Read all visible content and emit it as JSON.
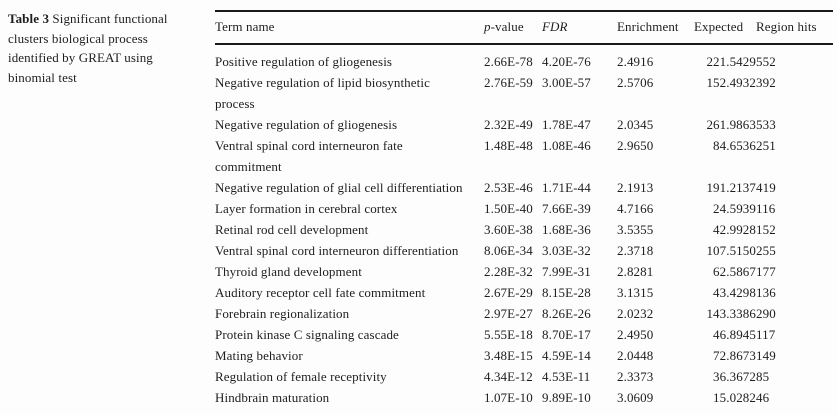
{
  "caption": {
    "label": "Table 3",
    "text": "Significant functional clusters biological process identified by GREAT using binomial test"
  },
  "table": {
    "columns": [
      {
        "key": "term",
        "label": "Term name",
        "italic": false
      },
      {
        "key": "p_value",
        "label": "p-value",
        "italic_prefix": "p",
        "label_rest": "-value"
      },
      {
        "key": "fdr",
        "label": "FDR",
        "italic": true
      },
      {
        "key": "enrichment",
        "label": "Enrichment",
        "italic": false
      },
      {
        "key": "expected",
        "label": "Expected",
        "italic": false
      },
      {
        "key": "region_hits",
        "label": "Region hits",
        "italic": false
      }
    ],
    "rows": [
      {
        "term": "Positive regulation of gliogenesis",
        "p_value": "2.66E-78",
        "fdr": "4.20E-76",
        "enrichment": "2.4916",
        "expected": "221.5429",
        "region_hits": "552"
      },
      {
        "term": "Negative regulation of lipid biosynthetic\nprocess",
        "p_value": "2.76E-59",
        "fdr": "3.00E-57",
        "enrichment": "2.5706",
        "expected": "152.4932",
        "region_hits": "392"
      },
      {
        "term": "Negative regulation of gliogenesis",
        "p_value": "2.32E-49",
        "fdr": "1.78E-47",
        "enrichment": "2.0345",
        "expected": "261.9863",
        "region_hits": "533"
      },
      {
        "term": "Ventral spinal cord interneuron fate\ncommitment",
        "p_value": "1.48E-48",
        "fdr": "1.08E-46",
        "enrichment": "2.9650",
        "expected": "84.6536",
        "region_hits": "251"
      },
      {
        "term": "Negative regulation of glial cell differentiation",
        "p_value": "2.53E-46",
        "fdr": "1.71E-44",
        "enrichment": "2.1913",
        "expected": "191.2137",
        "region_hits": "419"
      },
      {
        "term": "Layer formation in cerebral cortex",
        "p_value": "1.50E-40",
        "fdr": "7.66E-39",
        "enrichment": "4.7166",
        "expected": "24.5939",
        "region_hits": "116"
      },
      {
        "term": "Retinal rod cell development",
        "p_value": "3.60E-38",
        "fdr": "1.68E-36",
        "enrichment": "3.5355",
        "expected": "42.9928",
        "region_hits": "152"
      },
      {
        "term": "Ventral spinal cord interneuron differentiation",
        "p_value": "8.06E-34",
        "fdr": "3.03E-32",
        "enrichment": "2.3718",
        "expected": "107.5150",
        "region_hits": "255"
      },
      {
        "term": "Thyroid gland development",
        "p_value": "2.28E-32",
        "fdr": "7.99E-31",
        "enrichment": "2.8281",
        "expected": "62.5867",
        "region_hits": "177"
      },
      {
        "term": "Auditory receptor cell fate commitment",
        "p_value": "2.67E-29",
        "fdr": "8.15E-28",
        "enrichment": "3.1315",
        "expected": "43.4298",
        "region_hits": "136"
      },
      {
        "term": "Forebrain regionalization",
        "p_value": "2.97E-27",
        "fdr": "8.26E-26",
        "enrichment": "2.0232",
        "expected": "143.3386",
        "region_hits": "290"
      },
      {
        "term": "Protein kinase C signaling cascade",
        "p_value": "5.55E-18",
        "fdr": "8.70E-17",
        "enrichment": "2.4950",
        "expected": "46.8945",
        "region_hits": "117"
      },
      {
        "term": "Mating behavior",
        "p_value": "3.48E-15",
        "fdr": "4.59E-14",
        "enrichment": "2.0448",
        "expected": "72.8673",
        "region_hits": "149"
      },
      {
        "term": "Regulation of female receptivity",
        "p_value": "4.34E-12",
        "fdr": "4.53E-11",
        "enrichment": "2.3373",
        "expected": "36.3672",
        "region_hits": "85"
      },
      {
        "term": "Hindbrain maturation",
        "p_value": "1.07E-10",
        "fdr": "9.89E-10",
        "enrichment": "3.0609",
        "expected": "15.0282",
        "region_hits": "46"
      }
    ]
  }
}
